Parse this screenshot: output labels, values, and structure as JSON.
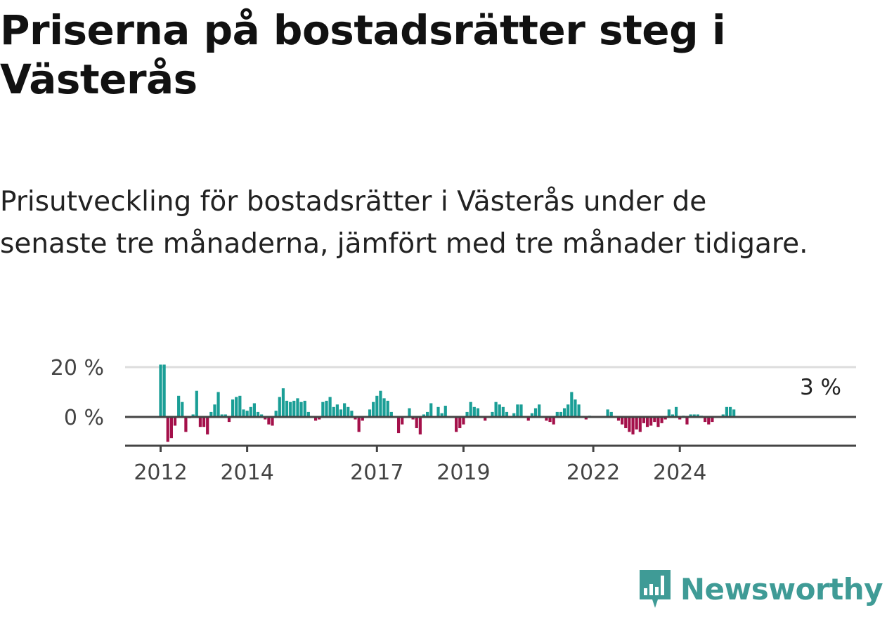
{
  "title": "Priserna på bostadsrätter steg i Västerås",
  "subtitle": "Prisutveckling för bostadsrätter i Västerås under de senaste tre månaderna, jämfört med tre månader tidigare.",
  "brand": {
    "name": "Newsworthy",
    "color": "#3f9b96"
  },
  "colors": {
    "positive": "#1a9e96",
    "negative": "#a4104a",
    "grid": "#dddddd",
    "axis": "#444444"
  },
  "chart_data": {
    "type": "bar",
    "title": "Priserna på bostadsrätter steg i Västerås",
    "xlabel": "",
    "ylabel": "",
    "ylim": [
      -11,
      22
    ],
    "yticks": [
      {
        "value": 0,
        "label": "0 %"
      },
      {
        "value": 20,
        "label": "20 %"
      }
    ],
    "xticks": [
      {
        "index": 0,
        "label": "2012"
      },
      {
        "index": 24,
        "label": "2014"
      },
      {
        "index": 60,
        "label": "2017"
      },
      {
        "index": 84,
        "label": "2019"
      },
      {
        "index": 120,
        "label": "2022"
      },
      {
        "index": 144,
        "label": "2024"
      }
    ],
    "end_label": "3 %",
    "start": "2012-01",
    "values": [
      21,
      21,
      -10,
      -8.5,
      -3.5,
      8.5,
      6,
      -6,
      -0.5,
      1,
      10.5,
      -4,
      -4,
      -7,
      2,
      5,
      10,
      1,
      1,
      -2,
      7,
      8,
      8.5,
      3,
      2.5,
      4,
      5.5,
      2,
      1,
      -1,
      -3,
      -3.5,
      2.5,
      8,
      11.5,
      6.5,
      6,
      6.5,
      7.5,
      6,
      6.5,
      2,
      0,
      -1.5,
      -1,
      6,
      6.5,
      8,
      4,
      5,
      3,
      5.5,
      4,
      2.5,
      -1,
      -6,
      -1.5,
      0,
      3,
      6,
      8.5,
      10.5,
      7.5,
      6.5,
      2,
      0,
      -6.5,
      -3,
      0,
      3.5,
      -1,
      -4.5,
      -7,
      1,
      2,
      5.5,
      0,
      4,
      1.5,
      4.5,
      0,
      0,
      -6,
      -4.5,
      -3,
      2,
      6,
      4,
      3.5,
      0,
      -1.5,
      0,
      2,
      6,
      5,
      4,
      2,
      0,
      1.5,
      5,
      5,
      0,
      -1.5,
      1.5,
      3.5,
      5,
      0,
      -1.5,
      -2,
      -3,
      2,
      2,
      3.5,
      5,
      10,
      7,
      5,
      0,
      -1,
      0.5,
      0,
      0,
      0,
      0,
      3,
      2,
      0,
      -1.5,
      -3,
      -4.5,
      -6,
      -7,
      -5,
      -6,
      -2.5,
      -4,
      -3.5,
      -2,
      -4,
      -2.5,
      -1,
      3,
      1,
      4,
      -1,
      0.5,
      -3,
      1,
      1,
      1,
      0.5,
      -2,
      -3,
      -2,
      0,
      0,
      1,
      4,
      4,
      3
    ]
  }
}
